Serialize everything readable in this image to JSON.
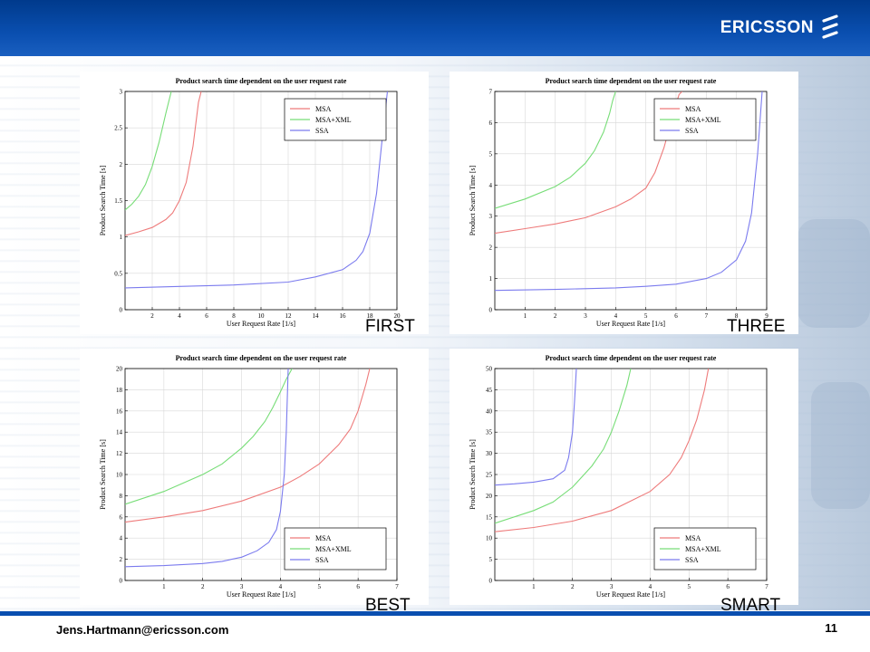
{
  "header": {
    "brand": "ERICSSON"
  },
  "footer": {
    "email": "Jens.Hartmann@ericsson.com",
    "page": "11"
  },
  "colors": {
    "MSA": "#ee7b7b",
    "MSA+XML": "#77dd77",
    "SSA": "#7b7bee",
    "accent": "#0a4fb0"
  },
  "chart_data": [
    {
      "type": "line",
      "caption": "FIRST",
      "title": "Product search time dependent on the user request rate",
      "xlabel": "User Request Rate [1/s]",
      "ylabel": "Product Search Time [s]",
      "xlim": [
        0,
        20
      ],
      "ylim": [
        0,
        3
      ],
      "xticks": [
        2,
        4,
        6,
        8,
        10,
        12,
        14,
        16,
        18,
        20
      ],
      "yticks": [
        0,
        0.5,
        1,
        1.5,
        2,
        2.5,
        3
      ],
      "legend": "top-right",
      "grid": true,
      "series": [
        {
          "name": "MSA",
          "x": [
            0,
            1,
            2,
            3,
            3.5,
            4,
            4.5,
            5,
            5.2,
            5.4,
            5.6
          ],
          "y": [
            1.02,
            1.07,
            1.13,
            1.24,
            1.33,
            1.5,
            1.75,
            2.25,
            2.55,
            2.85,
            3
          ]
        },
        {
          "name": "MSA+XML",
          "x": [
            0,
            0.5,
            1,
            1.5,
            2,
            2.5,
            3,
            3.2,
            3.4
          ],
          "y": [
            1.37,
            1.45,
            1.56,
            1.72,
            1.97,
            2.3,
            2.7,
            2.85,
            3
          ]
        },
        {
          "name": "SSA",
          "x": [
            0,
            4,
            8,
            12,
            14,
            16,
            17,
            17.5,
            18,
            18.5,
            19,
            19.3
          ],
          "y": [
            0.3,
            0.32,
            0.34,
            0.38,
            0.45,
            0.55,
            0.68,
            0.8,
            1.05,
            1.6,
            2.5,
            3
          ]
        }
      ]
    },
    {
      "type": "line",
      "caption": "THREE",
      "title": "Product search time dependent on the user request rate",
      "xlabel": "User Request Rate [1/s]",
      "ylabel": "Product Search Time [s]",
      "xlim": [
        0,
        9
      ],
      "ylim": [
        0,
        7
      ],
      "xticks": [
        1,
        2,
        3,
        4,
        5,
        6,
        7,
        8,
        9
      ],
      "yticks": [
        0,
        1,
        2,
        3,
        4,
        5,
        6,
        7
      ],
      "legend": "top-right",
      "grid": true,
      "series": [
        {
          "name": "MSA",
          "x": [
            0,
            1,
            2,
            3,
            4,
            4.5,
            5,
            5.3,
            5.6,
            5.8,
            6,
            6.1,
            6.2
          ],
          "y": [
            2.45,
            2.6,
            2.75,
            2.95,
            3.3,
            3.55,
            3.9,
            4.4,
            5.2,
            5.9,
            6.6,
            6.9,
            7
          ]
        },
        {
          "name": "MSA+XML",
          "x": [
            0,
            1,
            2,
            2.5,
            3,
            3.3,
            3.6,
            3.8,
            3.9,
            4
          ],
          "y": [
            3.25,
            3.55,
            3.95,
            4.25,
            4.7,
            5.1,
            5.7,
            6.3,
            6.7,
            7
          ]
        },
        {
          "name": "SSA",
          "x": [
            0,
            2,
            4,
            5,
            6,
            7,
            7.5,
            8,
            8.3,
            8.5,
            8.7,
            8.85
          ],
          "y": [
            0.62,
            0.65,
            0.7,
            0.75,
            0.82,
            1,
            1.2,
            1.6,
            2.2,
            3.1,
            5,
            7
          ]
        }
      ]
    },
    {
      "type": "line",
      "caption": "BEST",
      "title": "Product search time dependent on the user request rate",
      "xlabel": "User Request Rate [1/s]",
      "ylabel": "Product Search Time [s]",
      "xlim": [
        0,
        7
      ],
      "ylim": [
        0,
        20
      ],
      "xticks": [
        1,
        2,
        3,
        4,
        5,
        6,
        7
      ],
      "yticks": [
        0,
        2,
        4,
        6,
        8,
        10,
        12,
        14,
        16,
        18,
        20
      ],
      "legend": "bottom-right",
      "grid": true,
      "series": [
        {
          "name": "MSA",
          "x": [
            0,
            1,
            2,
            3,
            4,
            4.5,
            5,
            5.5,
            5.8,
            6,
            6.2,
            6.3
          ],
          "y": [
            5.5,
            6,
            6.6,
            7.5,
            8.8,
            9.8,
            11,
            12.8,
            14.3,
            16,
            18.5,
            20
          ]
        },
        {
          "name": "MSA+XML",
          "x": [
            0,
            1,
            2,
            2.5,
            3,
            3.3,
            3.6,
            3.8,
            4,
            4.15,
            4.3
          ],
          "y": [
            7.2,
            8.4,
            10,
            11,
            12.5,
            13.6,
            15,
            16.3,
            17.8,
            19,
            20
          ]
        },
        {
          "name": "SSA",
          "x": [
            0,
            1,
            2,
            2.5,
            3,
            3.4,
            3.7,
            3.9,
            4,
            4.1,
            4.15,
            4.2
          ],
          "y": [
            1.3,
            1.4,
            1.6,
            1.8,
            2.2,
            2.8,
            3.6,
            4.8,
            6.5,
            10,
            14,
            20
          ]
        }
      ]
    },
    {
      "type": "line",
      "caption": "SMART",
      "title": "Product search time dependent on the user request rate",
      "xlabel": "User Request Rate [1/s]",
      "ylabel": "Product Search Time [s]",
      "xlim": [
        0,
        7
      ],
      "ylim": [
        0,
        50
      ],
      "xticks": [
        1,
        2,
        3,
        4,
        5,
        6,
        7
      ],
      "yticks": [
        0,
        5,
        10,
        15,
        20,
        25,
        30,
        35,
        40,
        45,
        50
      ],
      "legend": "bottom-right",
      "grid": true,
      "series": [
        {
          "name": "MSA",
          "x": [
            0,
            1,
            2,
            3,
            4,
            4.5,
            4.8,
            5,
            5.2,
            5.4,
            5.5
          ],
          "y": [
            11.5,
            12.5,
            14,
            16.5,
            21,
            25,
            29,
            33,
            38,
            45,
            50
          ]
        },
        {
          "name": "MSA+XML",
          "x": [
            0,
            1,
            1.5,
            2,
            2.5,
            2.8,
            3,
            3.2,
            3.4,
            3.5
          ],
          "y": [
            13.5,
            16.5,
            18.5,
            22,
            27,
            31,
            35,
            40,
            46,
            50
          ]
        },
        {
          "name": "SSA",
          "x": [
            0,
            0.5,
            1,
            1.5,
            1.8,
            1.9,
            2,
            2.05,
            2.1
          ],
          "y": [
            22.5,
            22.8,
            23.2,
            24,
            26,
            29,
            35,
            42,
            50
          ]
        }
      ]
    }
  ]
}
